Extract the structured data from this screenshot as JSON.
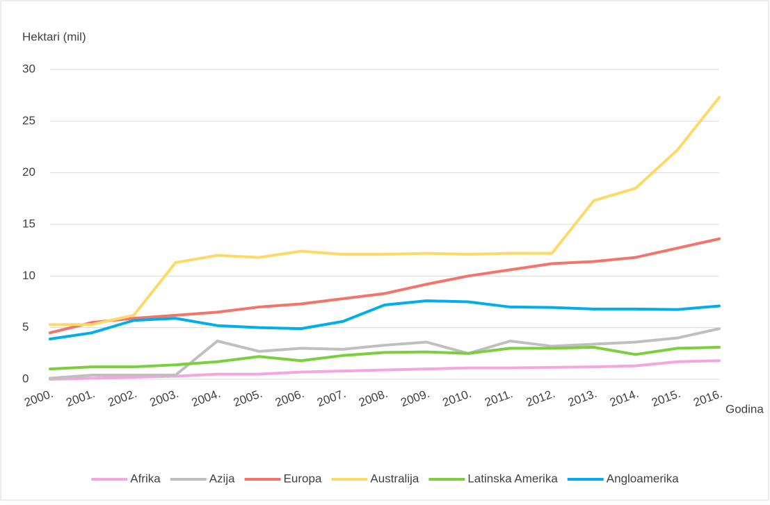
{
  "chart_data": {
    "type": "line",
    "y_label": "Hektari (mil)",
    "x_label": "Godina",
    "categories": [
      "2000.",
      "2001.",
      "2002.",
      "2003.",
      "2004.",
      "2005.",
      "2006.",
      "2007.",
      "2008.",
      "2009.",
      "2010.",
      "2011.",
      "2012.",
      "2013.",
      "2014.",
      "2015.",
      "2016."
    ],
    "ylim": [
      0,
      30
    ],
    "yticks": [
      0,
      5,
      10,
      15,
      20,
      25,
      30
    ],
    "grid": true,
    "legend": "bottom",
    "series": [
      {
        "name": "Afrika",
        "color": "#f4a6e0",
        "values": [
          0.0,
          0.1,
          0.2,
          0.3,
          0.5,
          0.5,
          0.7,
          0.8,
          0.9,
          1.0,
          1.1,
          1.1,
          1.15,
          1.2,
          1.3,
          1.7,
          1.8
        ]
      },
      {
        "name": "Azija",
        "color": "#bfbfbf",
        "values": [
          0.1,
          0.4,
          0.4,
          0.4,
          3.7,
          2.7,
          3.0,
          2.9,
          3.3,
          3.6,
          2.5,
          3.7,
          3.2,
          3.4,
          3.6,
          4.0,
          4.9
        ]
      },
      {
        "name": "Europa",
        "color": "#f4736b",
        "values": [
          4.5,
          5.5,
          5.9,
          6.2,
          6.5,
          7.0,
          7.3,
          7.8,
          8.3,
          9.2,
          10.0,
          10.6,
          11.2,
          11.4,
          11.8,
          12.7,
          13.6
        ]
      },
      {
        "name": "Australija",
        "color": "#ffd966",
        "values": [
          5.3,
          5.3,
          6.2,
          11.3,
          12.0,
          11.8,
          12.4,
          12.1,
          12.1,
          12.2,
          12.1,
          12.2,
          12.2,
          17.3,
          18.5,
          22.2,
          27.3
        ]
      },
      {
        "name": "Latinska Amerika",
        "color": "#7ccf3c",
        "values": [
          1.0,
          1.2,
          1.2,
          1.4,
          1.7,
          2.2,
          1.8,
          2.3,
          2.6,
          2.65,
          2.5,
          3.0,
          3.0,
          3.1,
          2.4,
          3.0,
          3.1
        ]
      },
      {
        "name": "Angloamerika",
        "color": "#00aeef",
        "values": [
          3.9,
          4.5,
          5.7,
          5.9,
          5.2,
          5.0,
          4.9,
          5.6,
          7.2,
          7.6,
          7.5,
          7.0,
          6.95,
          6.8,
          6.8,
          6.75,
          7.1
        ]
      }
    ]
  }
}
